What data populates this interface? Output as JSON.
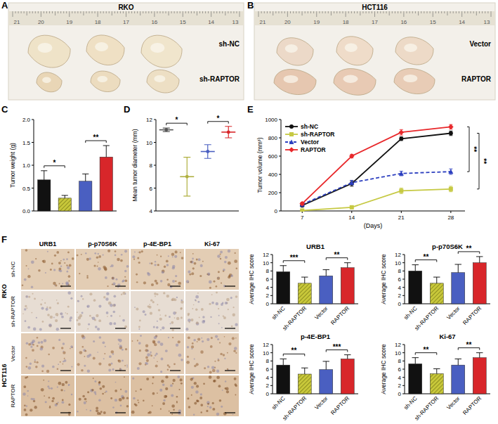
{
  "figure": {
    "panel_labels": [
      "A",
      "B",
      "C",
      "D",
      "E",
      "F"
    ],
    "photos": [
      {
        "title": "RKO",
        "ruler": [
          21,
          20,
          19,
          18,
          17,
          16,
          15,
          14,
          13
        ],
        "rows": [
          "sh-NC",
          "sh-RAPTOR"
        ]
      },
      {
        "title": "HCT116",
        "ruler": [
          21,
          20,
          19,
          18,
          17,
          16,
          15,
          14,
          13
        ],
        "rows": [
          "Vector",
          "RAPTOR"
        ]
      }
    ],
    "ihc": {
      "columns": [
        "URB1",
        "p-p70S6K",
        "p-4E-BP1",
        "Ki-67"
      ],
      "groups": [
        {
          "name": "RKO",
          "rows": [
            "sh-NC",
            "sh-RAPTOR"
          ]
        },
        {
          "name": "HCT116",
          "rows": [
            "Vector",
            "RAPTOR"
          ]
        }
      ]
    }
  },
  "chart_data": [
    {
      "type": "bar",
      "ylabel": "Tumor weight (g)",
      "tick_labels": "y",
      "values": [
        0.68,
        0.28,
        0.65,
        1.18
      ],
      "errors": [
        0.2,
        0.06,
        0.16,
        0.25
      ],
      "colors": [
        "#111111",
        "#c8c83a",
        "#4a5fc1",
        "#d8262a"
      ],
      "ylim": [
        0,
        2
      ],
      "yticks": [
        {
          "value": 0,
          "label": "0.0"
        },
        0.5,
        {
          "value": 1,
          "label": "1.0"
        },
        1.5,
        {
          "value": 2,
          "label": "2.0"
        }
      ],
      "significance": [
        {
          "pair": [
            0,
            1
          ],
          "label": "*"
        },
        {
          "pair": [
            2,
            3
          ],
          "label": "**"
        }
      ]
    },
    {
      "type": "dot",
      "ylabel": "Mean tumor diameter (mm)",
      "tick_labels": "y",
      "values": [
        11.1,
        7.0,
        9.2,
        10.9
      ],
      "errors": [
        0.15,
        1.7,
        0.6,
        0.5
      ],
      "colors": [
        "#555555",
        "#b0b040",
        "#4a5fc1",
        "#d8262a"
      ],
      "ylim": [
        4,
        12
      ],
      "yticks": [
        4,
        6,
        8,
        10,
        12
      ],
      "significance": [
        {
          "pair": [
            0,
            1
          ],
          "label": "*"
        },
        {
          "pair": [
            2,
            3
          ],
          "label": "*"
        }
      ]
    },
    {
      "type": "line",
      "ylabel": "Tumor volume (mm³)",
      "xlabel": "(Days)",
      "legend": "top-left",
      "x": [
        7,
        14,
        21,
        28
      ],
      "xlim": [
        4,
        30
      ],
      "xticks": [
        7,
        14,
        21,
        28
      ],
      "ylim": [
        0,
        1000
      ],
      "yticks": [
        0,
        200,
        400,
        600,
        800,
        1000
      ],
      "series": [
        {
          "name": "sh-NC",
          "color": "#111111",
          "marker": "circle",
          "line_style": "solid",
          "values": [
            60,
            300,
            790,
            850
          ],
          "errors": [
            15,
            30,
            20,
            25
          ]
        },
        {
          "name": "sh-RAPTOR",
          "color": "#c6c943",
          "marker": "square",
          "line_style": "solid",
          "values": [
            5,
            40,
            220,
            240
          ],
          "errors": [
            5,
            15,
            30,
            30
          ]
        },
        {
          "name": "Vector",
          "color": "#2c3fbf",
          "marker": "triangle",
          "line_style": "dashed",
          "values": [
            70,
            310,
            410,
            430
          ],
          "errors": [
            15,
            25,
            25,
            30
          ]
        },
        {
          "name": "RAPTOR",
          "color": "#e8282b",
          "marker": "diamond",
          "line_style": "solid",
          "values": [
            80,
            600,
            860,
            920
          ],
          "errors": [
            15,
            20,
            30,
            25
          ]
        }
      ],
      "significance": [
        {
          "pair": [
            3,
            2
          ],
          "label": "**"
        },
        {
          "pair": [
            0,
            1
          ],
          "label": "**"
        }
      ]
    },
    {
      "type": "bar",
      "title": "URB1",
      "ylabel": "Average IHC score",
      "categories": [
        "sh-NC",
        "sh-RAPTOR",
        "Vector",
        "RAPTOR"
      ],
      "values": [
        7.8,
        5.0,
        6.8,
        8.8
      ],
      "errors": [
        1.5,
        1.5,
        1.5,
        1.2
      ],
      "colors": [
        "#111111",
        "#c8c83a",
        "#4a5fc1",
        "#d8262a"
      ],
      "ylim": [
        0,
        12
      ],
      "yticks": [
        0,
        2,
        4,
        6,
        8,
        10,
        12
      ],
      "significance": [
        {
          "pair": [
            0,
            1
          ],
          "label": "***"
        },
        {
          "pair": [
            2,
            3
          ],
          "label": "**"
        }
      ]
    },
    {
      "type": "bar",
      "title": "p-p70S6K",
      "ylabel": "Average IHC score",
      "categories": [
        "sh-NC",
        "sh-RAPTOR",
        "Vector",
        "RAPTOR"
      ],
      "values": [
        8.0,
        5.0,
        7.6,
        10.0
      ],
      "errors": [
        1.5,
        1.5,
        2.0,
        1.5
      ],
      "colors": [
        "#111111",
        "#c8c83a",
        "#4a5fc1",
        "#d8262a"
      ],
      "ylim": [
        0,
        12
      ],
      "yticks": [
        0,
        2,
        4,
        6,
        8,
        10,
        12
      ],
      "significance": [
        {
          "pair": [
            0,
            1
          ],
          "label": "**"
        },
        {
          "pair": [
            2,
            3
          ],
          "label": "**"
        }
      ]
    },
    {
      "type": "bar",
      "title": "p-4E-BP1",
      "ylabel": "Average IHC score",
      "categories": [
        "sh-NC",
        "sh-RAPTOR",
        "Vector",
        "RAPTOR"
      ],
      "values": [
        7.0,
        4.8,
        5.9,
        8.5
      ],
      "errors": [
        1.5,
        1.5,
        2.0,
        1.0
      ],
      "colors": [
        "#111111",
        "#c8c83a",
        "#4a5fc1",
        "#d8262a"
      ],
      "ylim": [
        0,
        12
      ],
      "yticks": [
        0,
        2,
        4,
        6,
        8,
        10,
        12
      ],
      "significance": [
        {
          "pair": [
            0,
            1
          ],
          "label": "**"
        },
        {
          "pair": [
            2,
            3
          ],
          "label": "***"
        }
      ]
    },
    {
      "type": "bar",
      "title": "Ki-67",
      "ylabel": "Average IHC score",
      "categories": [
        "sh-NC",
        "sh-RAPTOR",
        "Vector",
        "RAPTOR"
      ],
      "values": [
        7.3,
        4.9,
        7.0,
        8.8
      ],
      "errors": [
        1.5,
        1.2,
        1.5,
        1.2
      ],
      "colors": [
        "#111111",
        "#c8c83a",
        "#4a5fc1",
        "#d8262a"
      ],
      "ylim": [
        0,
        12
      ],
      "yticks": [
        0,
        2,
        4,
        6,
        8,
        10,
        12
      ],
      "significance": [
        {
          "pair": [
            0,
            1
          ],
          "label": "**"
        },
        {
          "pair": [
            2,
            3
          ],
          "label": "**"
        }
      ]
    }
  ]
}
